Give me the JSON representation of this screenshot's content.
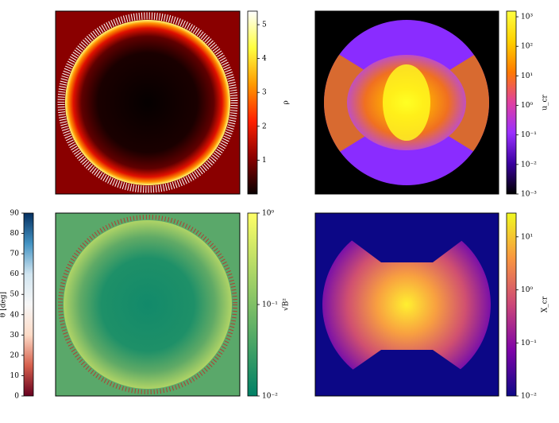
{
  "chart_data": [
    {
      "type": "heatmap",
      "colorbar_label": "ρ",
      "colorbar_side": "right",
      "log": false,
      "clim": [
        0,
        5.4
      ],
      "ticks": [
        1,
        2,
        3,
        4,
        5
      ],
      "colormap": [
        "#0a0000",
        "#8b0000",
        "#ff2000",
        "#ff9a00",
        "#ffff40",
        "#ffffff"
      ]
    },
    {
      "type": "heatmap",
      "colorbar_label": "u_cr",
      "colorbar_side": "right",
      "log": true,
      "clim": [
        0.001,
        1550
      ],
      "ticks": [
        {
          "value": 0.001,
          "label": "10⁻³"
        },
        {
          "value": 0.01,
          "label": "10⁻²"
        },
        {
          "value": 0.1,
          "label": "10⁻¹"
        },
        {
          "value": 1,
          "label": "10⁰"
        },
        {
          "value": 10,
          "label": "10¹"
        },
        {
          "value": 100,
          "label": "10²"
        },
        {
          "value": 1000,
          "label": "10³"
        }
      ],
      "colormap": [
        "#000000",
        "#3a00a0",
        "#9a30ff",
        "#e040a0",
        "#ff7a00",
        "#ffd000",
        "#ffff40"
      ]
    },
    {
      "type": "heatmap",
      "colorbar_label": "θ [deg]",
      "colorbar_side": "left",
      "log": false,
      "clim": [
        0,
        90
      ],
      "ticks": [
        0,
        10,
        20,
        30,
        40,
        50,
        60,
        70,
        80,
        90
      ],
      "colormap": [
        "#67001f",
        "#d6604d",
        "#fddbc7",
        "#f7f7f7",
        "#d1e5f0",
        "#4393c3",
        "#053061"
      ]
    },
    {
      "type": "heatmap",
      "colorbar_label": "√B²",
      "colorbar_side": "right",
      "log": true,
      "clim": [
        0.01,
        1
      ],
      "ticks": [
        {
          "value": 0.01,
          "label": "10⁻²"
        },
        {
          "value": 0.1,
          "label": "10⁻¹"
        },
        {
          "value": 1,
          "label": "10⁰"
        }
      ],
      "colormap": [
        "#008066",
        "#80c066",
        "#ffff66"
      ]
    },
    {
      "type": "heatmap",
      "colorbar_label": "X_cr",
      "colorbar_side": "right",
      "log": true,
      "clim": [
        0.01,
        28
      ],
      "ticks": [
        {
          "value": 0.01,
          "label": "10⁻²"
        },
        {
          "value": 0.1,
          "label": "10⁻¹"
        },
        {
          "value": 1,
          "label": "10⁰"
        },
        {
          "value": 10,
          "label": "10¹"
        }
      ],
      "colormap": [
        "#0d0887",
        "#7e03a8",
        "#cc4778",
        "#f89540",
        "#f0f921"
      ]
    }
  ]
}
